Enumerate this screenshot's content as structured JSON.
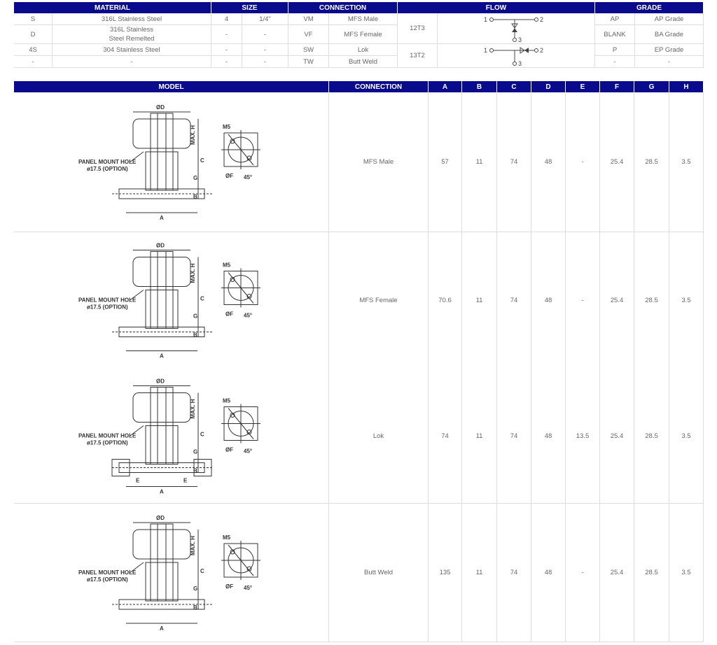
{
  "spec_table": {
    "headers": [
      "MATERIAL",
      "SIZE",
      "CONNECTION",
      "FLOW",
      "GRADE"
    ],
    "material": [
      [
        "S",
        "316L Stainless Steel"
      ],
      [
        "D",
        "316L Stainless\nSteel Remelted"
      ],
      [
        "4S",
        "304 Stainless Steel"
      ],
      [
        "-",
        "-"
      ]
    ],
    "size": [
      [
        "4",
        "1/4\""
      ],
      [
        "-",
        "-"
      ],
      [
        "-",
        "-"
      ],
      [
        "-",
        "-"
      ]
    ],
    "connection": [
      [
        "VM",
        "MFS Male"
      ],
      [
        "VF",
        "MFS Female"
      ],
      [
        "SW",
        "Lok"
      ],
      [
        "TW",
        "Butt Weld"
      ]
    ],
    "flow": [
      {
        "code": "12T3",
        "port1": "1",
        "port2": "2",
        "port3": "3"
      },
      {
        "code": "13T2",
        "port1": "1",
        "port2": "2",
        "port3": "3"
      }
    ],
    "grade": [
      [
        "AP",
        "AP Grade"
      ],
      [
        "BLANK",
        "BA Grade"
      ],
      [
        "P",
        "EP Grade"
      ],
      [
        "-",
        "-"
      ]
    ]
  },
  "dim_table": {
    "headers": [
      "MODEL",
      "CONNECTION",
      "A",
      "B",
      "C",
      "D",
      "E",
      "F",
      "G",
      "H"
    ],
    "drawing_labels": {
      "od": "ØD",
      "maxh": "MAX. H",
      "c": "C",
      "g": "G",
      "b": "B",
      "a": "A",
      "e": "E",
      "m5": "M5",
      "of": "ØF",
      "angle": "45°",
      "panel1": "PANEL MOUNT HOLE",
      "panel2": "ø17.5 (OPTION)"
    },
    "rows": [
      {
        "connection": "MFS Male",
        "A": "57",
        "B": "11",
        "C": "74",
        "D": "48",
        "E": "-",
        "F": "25.4",
        "G": "28.5",
        "H": "3.5"
      },
      {
        "connection": "MFS Female",
        "A": "70.6",
        "B": "11",
        "C": "74",
        "D": "48",
        "E": "-",
        "F": "25.4",
        "G": "28.5",
        "H": "3.5"
      },
      {
        "connection": "Lok",
        "A": "74",
        "B": "11",
        "C": "74",
        "D": "48",
        "E": "13.5",
        "F": "25.4",
        "G": "28.5",
        "H": "3.5"
      },
      {
        "connection": "Butt Weld",
        "A": "135",
        "B": "11",
        "C": "74",
        "D": "48",
        "E": "-",
        "F": "25.4",
        "G": "28.5",
        "H": "3.5"
      }
    ]
  },
  "colors": {
    "header_bg": "#0a0a8c",
    "header_text": "#ffffff",
    "border": "#dddddd"
  }
}
